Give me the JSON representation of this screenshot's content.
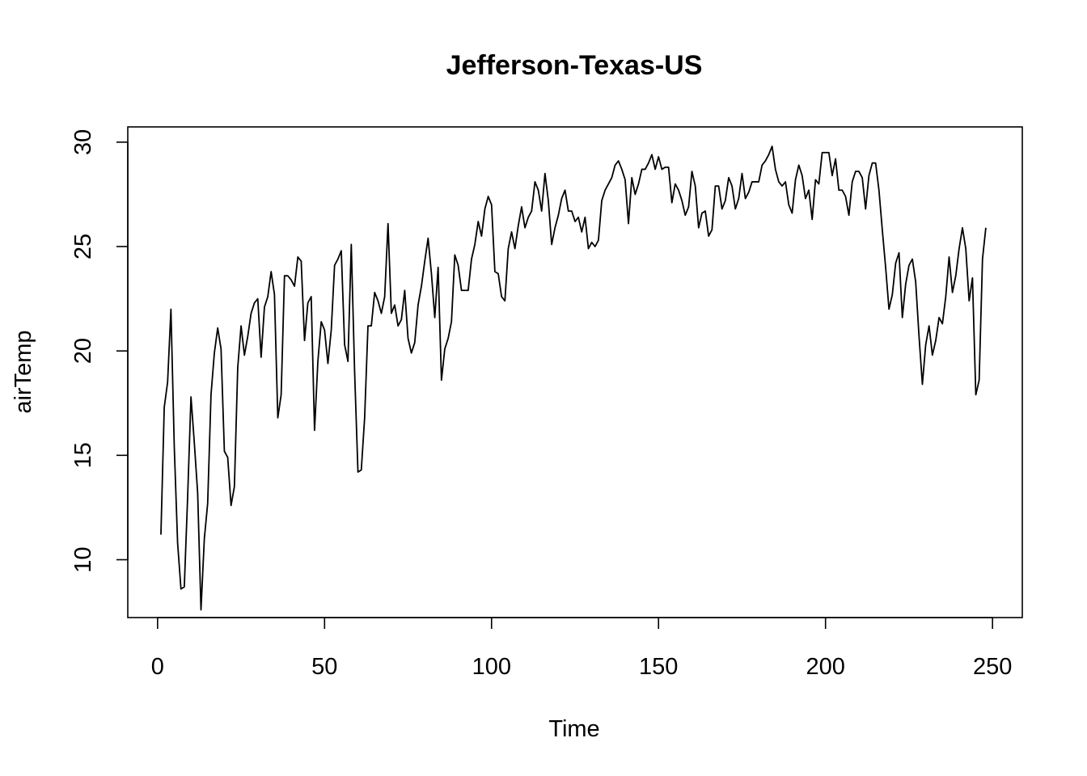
{
  "chart_data": {
    "type": "line",
    "title": "Jefferson-Texas-US",
    "xlabel": "Time",
    "ylabel": "airTemp",
    "xlim": [
      -8.92,
      258.92
    ],
    "ylim": [
      7.23,
      30.73
    ],
    "x_ticks": [
      0,
      50,
      100,
      150,
      200,
      250
    ],
    "y_ticks": [
      10,
      15,
      20,
      25,
      30
    ],
    "grid": false,
    "line_color": "#000000",
    "series": [
      {
        "values": [
          11.2,
          17.3,
          18.5,
          22.0,
          15.4,
          10.8,
          8.6,
          8.7,
          13.0,
          17.8,
          15.6,
          13.2,
          7.6,
          11.0,
          12.7,
          17.9,
          19.9,
          21.1,
          20.1,
          15.2,
          14.9,
          12.6,
          13.5,
          19.2,
          21.2,
          19.8,
          20.7,
          21.8,
          22.3,
          22.5,
          19.7,
          22.1,
          22.6,
          23.8,
          22.7,
          16.8,
          17.9,
          23.6,
          23.6,
          23.4,
          23.1,
          24.5,
          24.3,
          20.5,
          22.3,
          22.6,
          16.2,
          19.5,
          21.4,
          21.0,
          19.4,
          21.0,
          24.1,
          24.4,
          24.8,
          20.3,
          19.5,
          25.1,
          19.0,
          14.2,
          14.3,
          16.8,
          21.2,
          21.2,
          22.8,
          22.4,
          21.8,
          22.6,
          26.1,
          21.8,
          22.2,
          21.2,
          21.5,
          22.9,
          20.6,
          19.9,
          20.4,
          22.2,
          23.1,
          24.3,
          25.4,
          23.7,
          21.6,
          24.0,
          18.6,
          20.1,
          20.6,
          21.4,
          24.6,
          24.1,
          22.9,
          22.9,
          22.9,
          24.4,
          25.1,
          26.2,
          25.5,
          26.8,
          27.4,
          27.0,
          23.8,
          23.7,
          22.6,
          22.4,
          24.9,
          25.7,
          24.9,
          26.0,
          26.9,
          25.9,
          26.4,
          26.7,
          28.1,
          27.7,
          26.7,
          28.5,
          27.2,
          25.1,
          25.9,
          26.5,
          27.3,
          27.7,
          26.7,
          26.7,
          26.2,
          26.4,
          25.7,
          26.4,
          24.9,
          25.2,
          25.0,
          25.3,
          27.2,
          27.7,
          28.0,
          28.3,
          28.9,
          29.1,
          28.7,
          28.2,
          26.1,
          28.3,
          27.5,
          28.0,
          28.7,
          28.7,
          29.0,
          29.4,
          28.7,
          29.3,
          28.7,
          28.8,
          28.8,
          27.1,
          28.0,
          27.7,
          27.2,
          26.5,
          26.9,
          28.6,
          27.9,
          25.9,
          26.6,
          26.7,
          25.5,
          25.8,
          27.9,
          27.9,
          26.8,
          27.2,
          28.3,
          27.9,
          26.8,
          27.3,
          28.5,
          27.3,
          27.6,
          28.1,
          28.1,
          28.1,
          28.9,
          29.1,
          29.4,
          29.8,
          28.7,
          28.1,
          27.9,
          28.1,
          27.0,
          26.6,
          28.2,
          28.9,
          28.4,
          27.3,
          27.7,
          26.3,
          28.2,
          28.0,
          29.5,
          29.5,
          29.5,
          28.4,
          29.2,
          27.7,
          27.7,
          27.4,
          26.5,
          28.1,
          28.6,
          28.6,
          28.3,
          26.8,
          28.4,
          29.0,
          29.0,
          27.7,
          25.8,
          24.0,
          22.0,
          22.7,
          24.2,
          24.7,
          21.6,
          23.2,
          24.1,
          24.4,
          23.3,
          20.7,
          18.4,
          20.3,
          21.2,
          19.8,
          20.5,
          21.6,
          21.3,
          22.6,
          24.5,
          22.8,
          23.6,
          24.9,
          25.9,
          24.9,
          22.4,
          23.5,
          17.9,
          18.6,
          24.4,
          25.9
        ]
      }
    ]
  }
}
